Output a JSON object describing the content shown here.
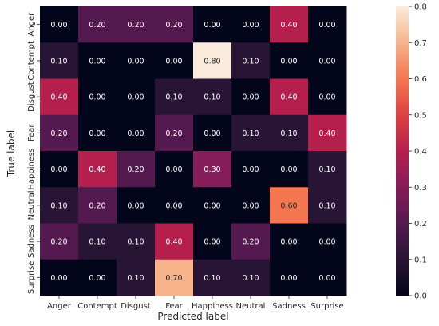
{
  "chart_data": {
    "type": "heatmap",
    "title": "",
    "xlabel": "Predicted label",
    "ylabel": "True label",
    "x_categories": [
      "Anger",
      "Contempt",
      "Disgust",
      "Fear",
      "Happiness",
      "Neutral",
      "Sadness",
      "Surprise"
    ],
    "y_categories": [
      "Anger",
      "Contempt",
      "Disgust",
      "Fear",
      "Happiness",
      "Neutral",
      "Sadness",
      "Surprise"
    ],
    "values": [
      [
        0.0,
        0.2,
        0.2,
        0.2,
        0.0,
        0.0,
        0.4,
        0.0
      ],
      [
        0.1,
        0.0,
        0.0,
        0.0,
        0.8,
        0.1,
        0.0,
        0.0
      ],
      [
        0.4,
        0.0,
        0.0,
        0.1,
        0.1,
        0.0,
        0.4,
        0.0
      ],
      [
        0.2,
        0.0,
        0.0,
        0.2,
        0.0,
        0.1,
        0.1,
        0.4
      ],
      [
        0.0,
        0.4,
        0.2,
        0.0,
        0.3,
        0.0,
        0.0,
        0.1
      ],
      [
        0.1,
        0.2,
        0.0,
        0.0,
        0.0,
        0.0,
        0.6,
        0.1
      ],
      [
        0.2,
        0.1,
        0.1,
        0.4,
        0.0,
        0.2,
        0.0,
        0.0
      ],
      [
        0.0,
        0.0,
        0.1,
        0.7,
        0.1,
        0.1,
        0.0,
        0.0
      ]
    ],
    "value_format": "0.00",
    "colormap": "rocket",
    "colorbar": {
      "range": [
        0.0,
        0.8
      ],
      "ticks": [
        "0.0",
        "0.1",
        "0.2",
        "0.3",
        "0.4",
        "0.5",
        "0.6",
        "0.7",
        "0.8"
      ]
    },
    "annotation_colors": {
      "on_dark": "#ffffff",
      "on_light": "#262626"
    }
  }
}
